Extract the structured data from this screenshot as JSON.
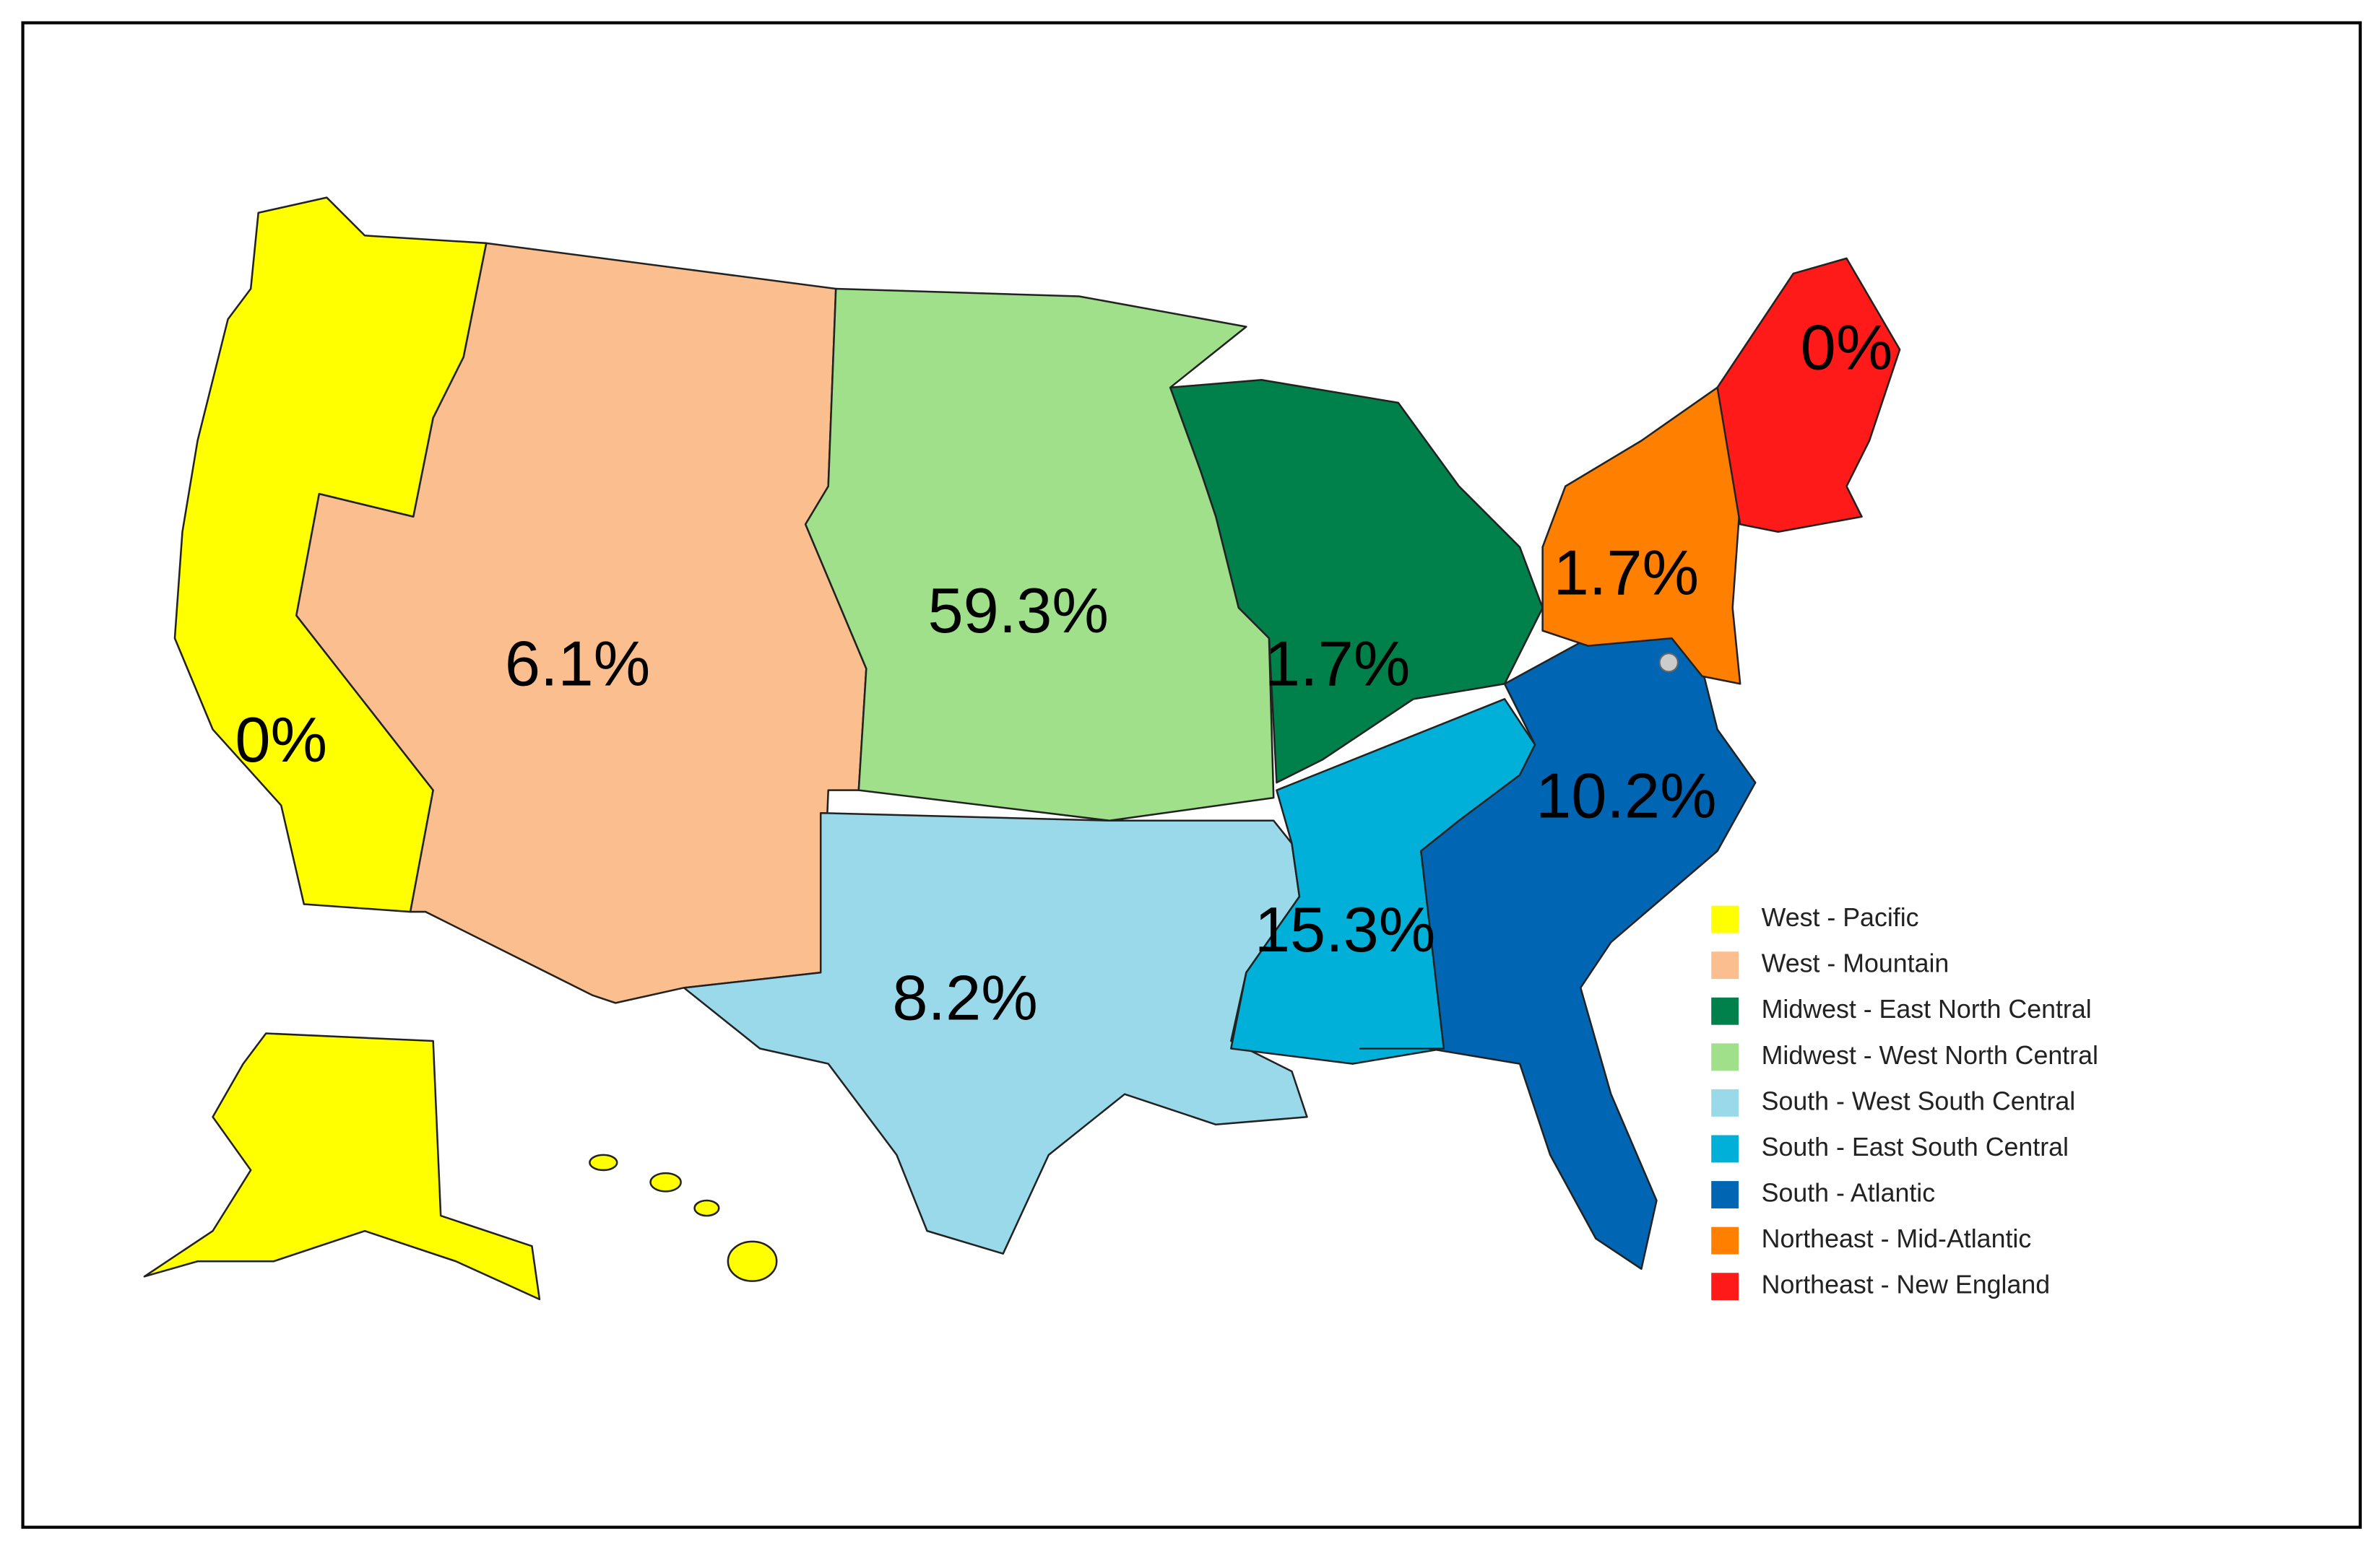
{
  "regions": [
    {
      "name": "West - Pacific",
      "color": "#ffff00",
      "label": "0%"
    },
    {
      "name": "West - Mountain",
      "color": "#fbbf8f",
      "label": "6.1%"
    },
    {
      "name": "Midwest - East North Central",
      "color": "#00804a",
      "label": "1.7%"
    },
    {
      "name": "Midwest - West North Central",
      "color": "#a0e08a",
      "label": "59.3%"
    },
    {
      "name": "South - West South Central",
      "color": "#99d9ea",
      "label": "8.2%"
    },
    {
      "name": "South - East South Central",
      "color": "#00b0d8",
      "label": "15.3%"
    },
    {
      "name": "South - Atlantic",
      "color": "#0066b3",
      "label": "10.2%"
    },
    {
      "name": "Northeast - Mid-Atlantic",
      "color": "#ff7f00",
      "label": "1.7%"
    },
    {
      "name": "Northeast - New England",
      "color": "#ff1a1a",
      "label": "0%"
    }
  ]
}
